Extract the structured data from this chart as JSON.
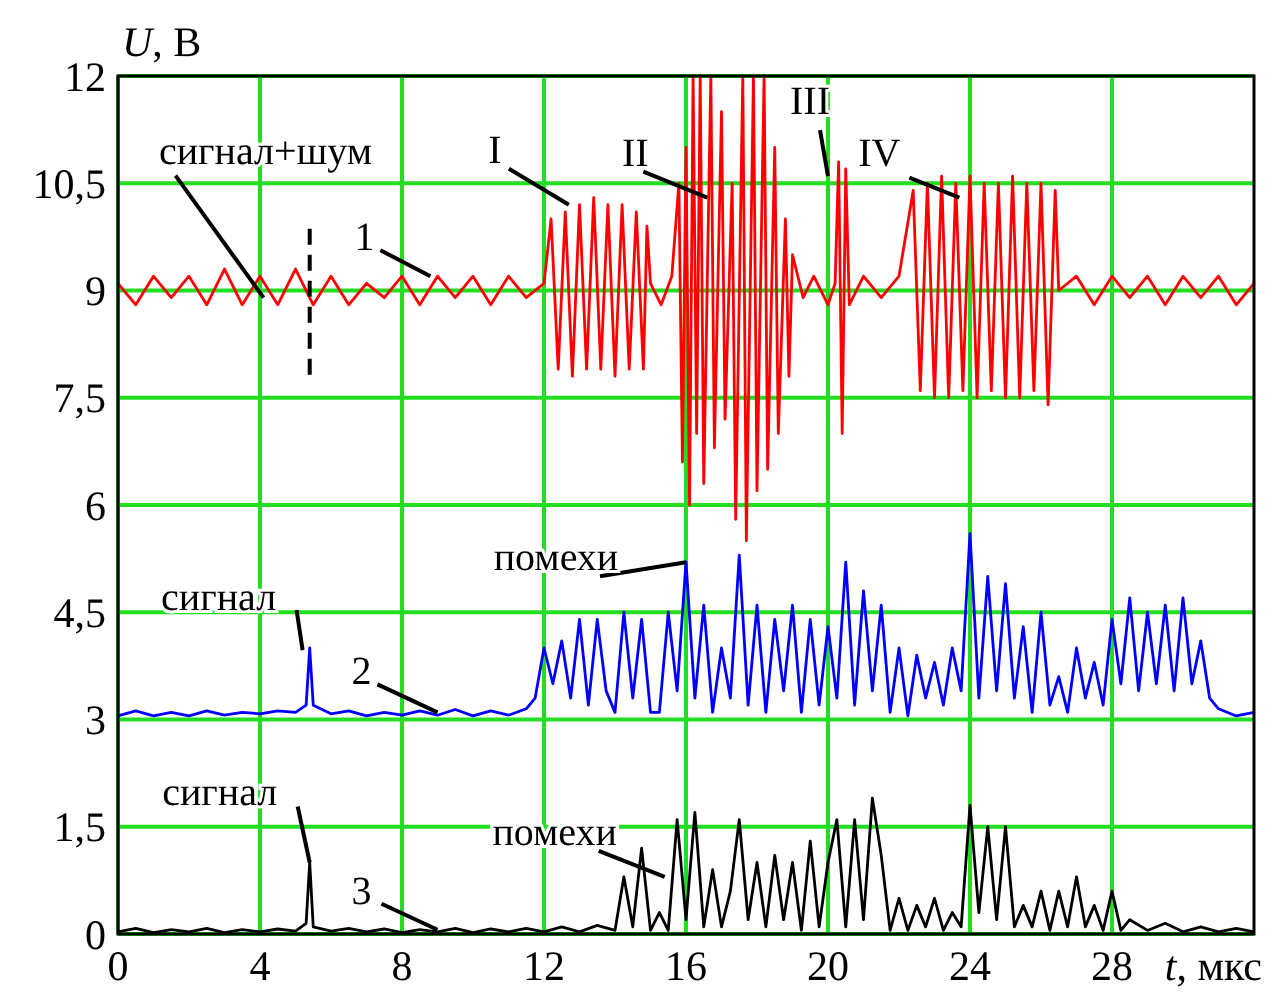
{
  "chart_data": {
    "type": "line",
    "xlabel": "t, мкс",
    "ylabel": "U, В",
    "xlim": [
      0,
      32
    ],
    "xticks": [
      0,
      4,
      8,
      12,
      16,
      20,
      24,
      28
    ],
    "ylim": [
      0,
      12
    ],
    "yticks": [
      0,
      {
        "value": 1.5,
        "label": "1,5"
      },
      3,
      {
        "value": 4.5,
        "label": "4,5"
      },
      6,
      {
        "value": 7.5,
        "label": "7,5"
      },
      9,
      {
        "value": 10.5,
        "label": "10,5"
      },
      12
    ],
    "grid": true,
    "marker": "none",
    "line_style": "solid",
    "series": [
      {
        "color": "#ff0000",
        "x": [
          0,
          0.5,
          1,
          1.5,
          2,
          2.5,
          3,
          3.5,
          4,
          4.5,
          5,
          5.5,
          6,
          6.5,
          7,
          7.5,
          8,
          8.5,
          9,
          9.5,
          10,
          10.5,
          11,
          11.5,
          12,
          12.2,
          12.4,
          12.6,
          12.8,
          13.0,
          13.2,
          13.4,
          13.6,
          13.8,
          14.0,
          14.2,
          14.4,
          14.6,
          14.8,
          14.9,
          15.0,
          15.3,
          15.6,
          15.8,
          15.9,
          16.0,
          16.1,
          16.2,
          16.3,
          16.4,
          16.5,
          16.7,
          16.8,
          17.0,
          17.1,
          17.3,
          17.4,
          17.6,
          17.7,
          17.9,
          18.0,
          18.2,
          18.3,
          18.5,
          18.6,
          18.8,
          18.9,
          19.0,
          19.3,
          19.6,
          20.0,
          20.2,
          20.3,
          20.4,
          20.5,
          20.6,
          21.0,
          21.5,
          22.0,
          22.4,
          22.6,
          22.8,
          23.0,
          23.2,
          23.4,
          23.6,
          23.8,
          24.0,
          24.2,
          24.4,
          24.6,
          24.8,
          25.0,
          25.2,
          25.4,
          25.6,
          25.8,
          26.0,
          26.2,
          26.4,
          26.5,
          27,
          27.5,
          28,
          28.5,
          29,
          29.5,
          30,
          30.5,
          31,
          31.5,
          32
        ],
        "values": [
          9.1,
          8.8,
          9.2,
          8.9,
          9.2,
          8.8,
          9.3,
          8.8,
          9.2,
          8.8,
          9.3,
          8.8,
          9.2,
          8.8,
          9.1,
          8.9,
          9.2,
          8.8,
          9.2,
          8.9,
          9.2,
          8.8,
          9.2,
          8.9,
          9.1,
          10.0,
          7.9,
          10.1,
          7.8,
          10.2,
          7.9,
          10.3,
          7.9,
          10.2,
          7.8,
          10.2,
          7.9,
          10.1,
          7.9,
          9.9,
          9.1,
          8.8,
          9.2,
          10.5,
          6.6,
          11.0,
          6.0,
          12,
          7.0,
          12,
          6.3,
          12,
          6.8,
          11.5,
          7.2,
          10.5,
          5.8,
          12,
          5.5,
          12,
          6.2,
          12,
          6.5,
          11.0,
          7.0,
          10.0,
          7.8,
          9.5,
          8.9,
          9.2,
          8.8,
          9.1,
          10.8,
          7.0,
          10.7,
          8.8,
          9.2,
          8.9,
          9.2,
          10.4,
          7.6,
          10.5,
          7.5,
          10.6,
          7.5,
          10.5,
          7.6,
          10.6,
          7.5,
          10.5,
          7.6,
          10.5,
          7.5,
          10.6,
          7.5,
          10.5,
          7.6,
          10.5,
          7.4,
          10.4,
          9.0,
          9.2,
          8.8,
          9.2,
          8.9,
          9.2,
          8.8,
          9.2,
          8.9,
          9.2,
          8.8,
          9.1
        ]
      },
      {
        "color": "#0000ff",
        "x": [
          0,
          0.5,
          1,
          1.5,
          2,
          2.5,
          3,
          3.5,
          4,
          4.5,
          5,
          5.3,
          5.4,
          5.5,
          6,
          6.5,
          7,
          7.5,
          8,
          8.5,
          9,
          9.5,
          10,
          10.5,
          11,
          11.5,
          11.75,
          12,
          12.25,
          12.5,
          12.75,
          13,
          13.25,
          13.5,
          13.75,
          14,
          14.25,
          14.5,
          14.75,
          15,
          15.25,
          15.5,
          15.75,
          16,
          16.25,
          16.5,
          16.75,
          17,
          17.25,
          17.5,
          17.75,
          18,
          18.25,
          18.5,
          18.75,
          19,
          19.25,
          19.5,
          19.75,
          20,
          20.25,
          20.5,
          20.75,
          21,
          21.25,
          21.5,
          21.75,
          22,
          22.25,
          22.5,
          22.75,
          23,
          23.25,
          23.5,
          23.75,
          24,
          24.25,
          24.5,
          24.75,
          25,
          25.25,
          25.5,
          25.75,
          26,
          26.25,
          26.5,
          26.75,
          27,
          27.25,
          27.5,
          27.75,
          28,
          28.25,
          28.5,
          28.75,
          29,
          29.25,
          29.5,
          29.75,
          30,
          30.25,
          30.5,
          30.75,
          31,
          31.5,
          32
        ],
        "values": [
          3.05,
          3.12,
          3.05,
          3.1,
          3.05,
          3.12,
          3.06,
          3.1,
          3.08,
          3.12,
          3.1,
          3.2,
          4.0,
          3.2,
          3.08,
          3.12,
          3.05,
          3.1,
          3.06,
          3.12,
          3.06,
          3.14,
          3.05,
          3.12,
          3.06,
          3.15,
          3.3,
          4.0,
          3.5,
          4.1,
          3.3,
          4.4,
          3.2,
          4.4,
          3.4,
          3.1,
          4.5,
          3.3,
          4.4,
          3.1,
          3.1,
          4.5,
          3.4,
          5.2,
          3.3,
          4.6,
          3.1,
          4.0,
          3.3,
          5.3,
          3.2,
          4.6,
          3.1,
          4.4,
          3.4,
          4.6,
          3.1,
          4.4,
          3.2,
          4.3,
          3.3,
          5.2,
          3.2,
          4.8,
          3.4,
          4.6,
          3.1,
          4.0,
          3.05,
          3.9,
          3.3,
          3.8,
          3.2,
          4.0,
          3.4,
          5.6,
          3.3,
          5.0,
          3.4,
          4.9,
          3.3,
          4.3,
          3.1,
          4.5,
          3.2,
          3.6,
          3.1,
          4.0,
          3.3,
          3.8,
          3.2,
          4.4,
          3.5,
          4.7,
          3.4,
          4.5,
          3.5,
          4.6,
          3.4,
          4.7,
          3.5,
          4.1,
          3.3,
          3.15,
          3.05,
          3.1
        ]
      },
      {
        "color": "#000000",
        "x": [
          0,
          0.5,
          1,
          1.5,
          2,
          2.5,
          3,
          3.5,
          4,
          4.5,
          5,
          5.3,
          5.4,
          5.5,
          6,
          6.5,
          7,
          7.5,
          8,
          8.5,
          9,
          9.5,
          10,
          10.5,
          11,
          11.5,
          12,
          12.5,
          13,
          13.5,
          14,
          14.25,
          14.5,
          14.75,
          15,
          15.25,
          15.5,
          15.75,
          16,
          16.25,
          16.5,
          16.75,
          17,
          17.25,
          17.5,
          17.75,
          18,
          18.25,
          18.5,
          18.75,
          19,
          19.25,
          19.5,
          19.75,
          20,
          20.25,
          20.5,
          20.75,
          21,
          21.25,
          21.5,
          21.75,
          22,
          22.25,
          22.5,
          22.75,
          23,
          23.25,
          23.5,
          23.75,
          24,
          24.25,
          24.5,
          24.75,
          25,
          25.25,
          25.5,
          25.75,
          26,
          26.25,
          26.5,
          26.75,
          27,
          27.25,
          27.5,
          27.75,
          28,
          28.25,
          28.5,
          29,
          29.5,
          30,
          30.5,
          31,
          31.5,
          32
        ],
        "values": [
          0.03,
          0.08,
          0.02,
          0.06,
          0.03,
          0.08,
          0.02,
          0.06,
          0.03,
          0.07,
          0.04,
          0.15,
          1.0,
          0.1,
          0.04,
          0.08,
          0.03,
          0.07,
          0.02,
          0.06,
          0.03,
          0.08,
          0.02,
          0.07,
          0.03,
          0.08,
          0.03,
          0.1,
          0.03,
          0.12,
          0.05,
          0.8,
          0.1,
          1.2,
          0.05,
          0.3,
          0.05,
          1.6,
          0.2,
          1.7,
          0.1,
          0.9,
          0.1,
          0.6,
          1.6,
          0.2,
          1.0,
          0.1,
          1.1,
          0.2,
          1.0,
          0.05,
          1.3,
          0.1,
          1.0,
          1.6,
          0.1,
          1.6,
          0.2,
          1.9,
          1.1,
          0.05,
          0.5,
          0.05,
          0.4,
          0.1,
          0.5,
          0.05,
          0.3,
          0.1,
          1.8,
          0.3,
          1.5,
          0.2,
          1.5,
          0.1,
          0.4,
          0.1,
          0.6,
          0.05,
          0.6,
          0.1,
          0.8,
          0.1,
          0.4,
          0.05,
          0.6,
          0.05,
          0.2,
          0.05,
          0.15,
          0.03,
          0.1,
          0.03,
          0.08,
          0.03
        ]
      }
    ],
    "ref_lines": [
      {
        "axis": "x",
        "value": 5.4,
        "color": "#000000",
        "line_style": "dashed"
      }
    ],
    "annotations": [
      {
        "text": "сигнал+шум",
        "x": 4.1,
        "y": 8.9
      },
      {
        "text": "1",
        "x": 8.8,
        "y": 9.2
      },
      {
        "text": "I",
        "x": 12.7,
        "y": 10.2
      },
      {
        "text": "II",
        "x": 16.6,
        "y": 10.3
      },
      {
        "text": "III",
        "x": 20.0,
        "y": 10.6
      },
      {
        "text": "IV",
        "x": 23.7,
        "y": 10.3
      },
      {
        "text": "сигнал",
        "x": 5.2,
        "y": 3.97
      },
      {
        "text": "2",
        "x": 9.0,
        "y": 3.1
      },
      {
        "text": "помехи",
        "x": 16,
        "y": 5.2
      },
      {
        "text": "сигнал",
        "x": 5.4,
        "y": 1.0
      },
      {
        "text": "помехи",
        "x": 15.4,
        "y": 0.8
      },
      {
        "text": "3",
        "x": 9.0,
        "y": 0.06
      }
    ]
  }
}
